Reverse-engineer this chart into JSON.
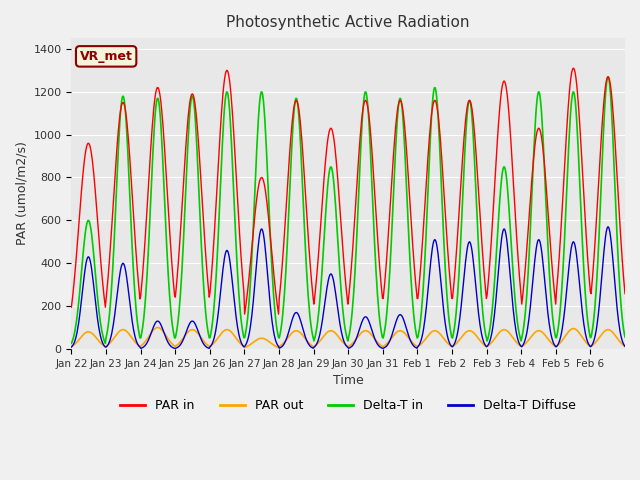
{
  "title": "Photosynthetic Active Radiation",
  "xlabel": "Time",
  "ylabel": "PAR (umol/m2/s)",
  "ylim": [
    0,
    1450
  ],
  "yticks": [
    0,
    200,
    400,
    600,
    800,
    1000,
    1200,
    1400
  ],
  "background_color": "#f0f0f0",
  "plot_bg_color": "#e8e8e8",
  "annotation_text": "VR_met",
  "annotation_bg": "#f5f5dc",
  "annotation_border": "#8B0000",
  "legend_labels": [
    "PAR in",
    "PAR out",
    "Delta-T in",
    "Delta-T Diffuse"
  ],
  "line_colors": [
    "#ff0000",
    "#ffa500",
    "#00cc00",
    "#0000cc"
  ],
  "date_labels": [
    "Jan 22",
    "Jan 23",
    "Jan 24",
    "Jan 25",
    "Jan 26",
    "Jan 27",
    "Jan 28",
    "Jan 29",
    "Jan 30",
    "Jan 31",
    "Feb 1",
    "Feb 2",
    "Feb 3",
    "Feb 4",
    "Feb 5",
    "Feb 6"
  ],
  "day_peaks_par_in": [
    960,
    1150,
    1220,
    1190,
    1300,
    800,
    1160,
    1030,
    1160,
    1160,
    1160,
    1160,
    1250,
    1030,
    1310,
    1270
  ],
  "day_peaks_par_out": [
    80,
    90,
    100,
    90,
    90,
    50,
    85,
    85,
    85,
    85,
    85,
    85,
    90,
    85,
    95,
    90
  ],
  "day_peaks_delta_in": [
    600,
    1180,
    1170,
    1180,
    1200,
    1200,
    1170,
    850,
    1200,
    1170,
    1220,
    1160,
    850,
    1200,
    1200,
    1270
  ],
  "day_peaks_delta_dif": [
    430,
    400,
    130,
    130,
    460,
    560,
    170,
    350,
    150,
    160,
    510,
    500,
    560,
    510,
    500,
    570
  ],
  "pts_per_day": 48,
  "n_days": 16
}
